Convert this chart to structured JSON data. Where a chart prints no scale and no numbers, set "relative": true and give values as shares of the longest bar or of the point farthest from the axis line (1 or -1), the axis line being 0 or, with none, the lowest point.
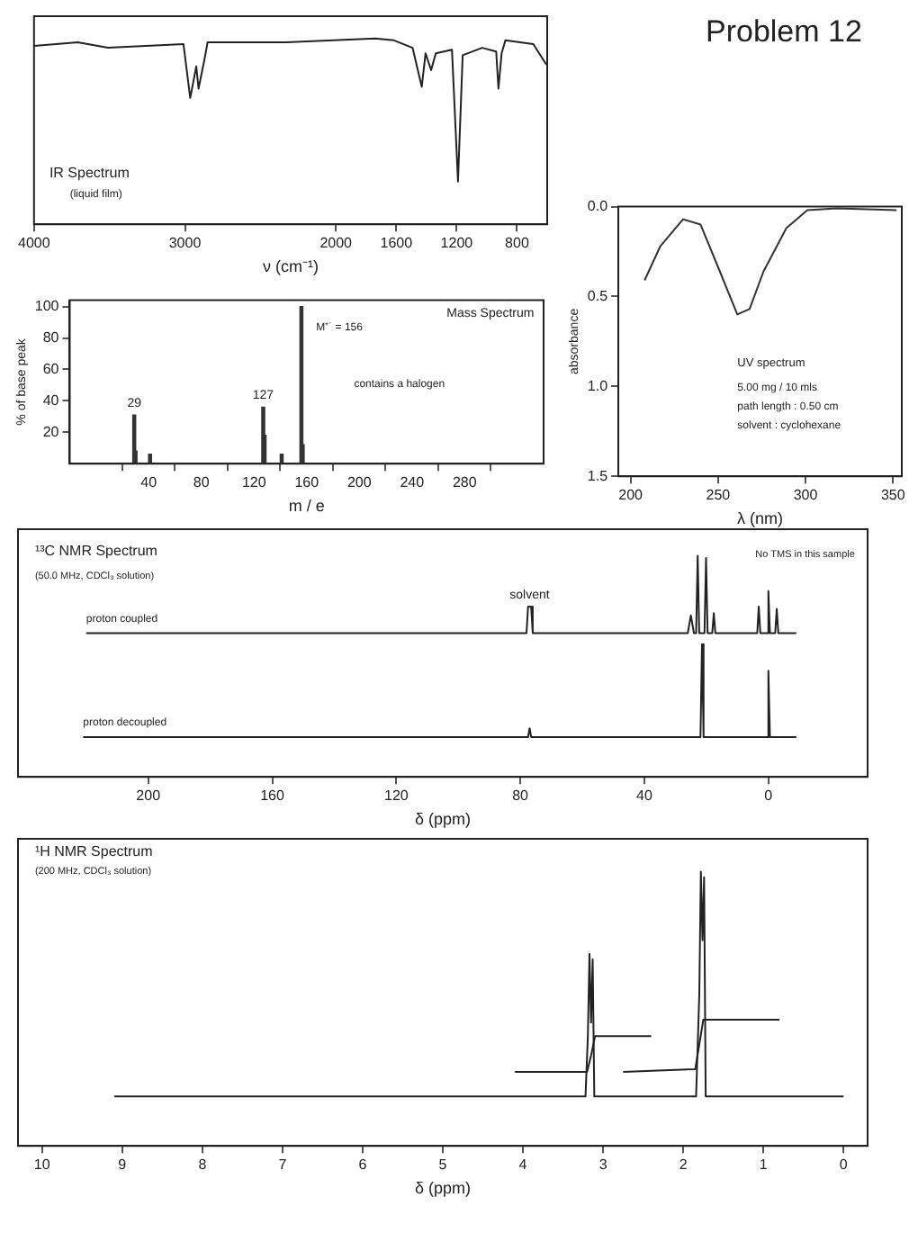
{
  "chart_data": [
    {
      "type": "line",
      "xlabel": "ν (cm⁻¹)",
      "relative": true,
      "xlim": [
        4000,
        600
      ],
      "xticks": [
        4000,
        3000,
        2000,
        1600,
        1200,
        800
      ],
      "grid": false,
      "legend": false,
      "annotations": [
        "IR Spectrum",
        "(liquid film)"
      ],
      "series": [
        {
          "color": "#222222",
          "x": [
            4000,
            3710,
            3510,
            3010,
            2965,
            2925,
            2910,
            2870,
            2850,
            2330,
            1740,
            1615,
            1492,
            1431,
            1406,
            1369,
            1338,
            1231,
            1191,
            1160,
            1031,
            938,
            923,
            902,
            877,
            692,
            606
          ],
          "values": [
            0.96,
            0.98,
            0.95,
            0.97,
            0.68,
            0.85,
            0.73,
            0.89,
            0.98,
            0.98,
            1.0,
            0.99,
            0.95,
            0.74,
            0.92,
            0.83,
            0.92,
            0.94,
            0.23,
            0.91,
            0.95,
            0.93,
            0.73,
            0.92,
            0.99,
            0.97,
            0.86
          ]
        }
      ]
    },
    {
      "type": "bar",
      "xlabel": "m / e",
      "ylabel": "% of base peak",
      "xlim": [
        -20,
        340
      ],
      "xticks": [
        40,
        80,
        120,
        160,
        200,
        240,
        280
      ],
      "ylim": [
        0,
        104
      ],
      "yticks": [
        20,
        40,
        60,
        80,
        100
      ],
      "grid": false,
      "legend": false,
      "x": [
        29,
        30,
        41,
        127,
        128,
        141,
        156,
        157
      ],
      "values": [
        31,
        8,
        6,
        36,
        18,
        6,
        100,
        12
      ],
      "color": "#333333",
      "annotations": [
        "Mass Spectrum",
        "M⁺˙ = 156",
        "contains a halogen",
        {
          "text": "29",
          "x": 29,
          "y": 31
        },
        {
          "text": "127",
          "x": 127,
          "y": 36
        }
      ]
    },
    {
      "type": "line",
      "title": "Problem 12",
      "xlabel": "λ (nm)",
      "ylabel": "absorbance",
      "xlim": [
        193,
        355
      ],
      "xticks": [
        200,
        250,
        300,
        350
      ],
      "ylim": [
        1.5,
        0
      ],
      "yticks": [
        {
          "value": 0,
          "label": "0.0"
        },
        {
          "value": 0.5,
          "label": "0.5"
        },
        {
          "value": 1,
          "label": "1.0"
        },
        {
          "value": 1.5,
          "label": "1.5"
        }
      ],
      "grid": false,
      "legend": false,
      "annotations": [
        "UV spectrum",
        "5.00 mg / 10 mls",
        "path length : 0.50 cm",
        "solvent : cyclohexane"
      ],
      "series": [
        {
          "color": "#333333",
          "x": [
            208,
            217,
            230,
            240,
            251,
            261,
            268,
            276,
            289,
            301,
            318,
            352
          ],
          "values": [
            0.41,
            0.22,
            0.07,
            0.1,
            0.36,
            0.6,
            0.57,
            0.36,
            0.12,
            0.02,
            0.01,
            0.02
          ]
        }
      ]
    },
    {
      "type": "line",
      "xlabel": "δ (ppm)",
      "relative": true,
      "xlim": [
        242,
        -32
      ],
      "xticks": [
        200,
        160,
        120,
        80,
        40,
        0
      ],
      "grid": false,
      "legend": false,
      "annotations": [
        "¹³C NMR Spectrum",
        "(50.0 MHz, CDCl₃ solution)",
        {
          "text": "solvent",
          "x": 77,
          "y": 0.77
        },
        "No TMS in this sample"
      ],
      "series": [
        {
          "name": "proton coupled",
          "color": "#222222",
          "x": [
            220,
            78,
            77.5,
            76.5,
            76,
            26,
            25,
            24,
            23.3,
            22.8,
            22.3,
            20.6,
            20.1,
            19.6,
            18.1,
            17.6,
            17.1,
            3.6,
            3.1,
            2.6,
            0.5,
            0,
            -0.5,
            -2.2,
            -2.7,
            -3.2,
            -9
          ],
          "values": [
            0.65,
            0.65,
            0.77,
            0.77,
            0.65,
            0.65,
            0.73,
            0.65,
            0.65,
            1.0,
            0.65,
            0.65,
            0.99,
            0.65,
            0.65,
            0.74,
            0.65,
            0.65,
            0.77,
            0.65,
            0.65,
            0.84,
            0.65,
            0.65,
            0.76,
            0.65,
            0.65
          ]
        },
        {
          "name": "proton decoupled",
          "color": "#222222",
          "x": [
            221,
            77.5,
            77,
            76.5,
            21.9,
            21.4,
            20.9,
            0.5,
            0,
            -0.5,
            -9
          ],
          "values": [
            0.18,
            0.18,
            0.22,
            0.18,
            0.18,
            0.6,
            0.18,
            0.18,
            0.48,
            0.18,
            0.18
          ]
        }
      ]
    },
    {
      "type": "line",
      "xlabel": "δ (ppm)",
      "relative": true,
      "xlim": [
        10.3,
        -0.3
      ],
      "xticks": [
        10,
        9,
        8,
        7,
        6,
        5,
        4,
        3,
        2,
        1,
        0
      ],
      "grid": false,
      "legend": false,
      "annotations": [
        "¹H NMR Spectrum",
        "(200 MHz, CDCl₃ solution)"
      ],
      "series": [
        {
          "color": "#222222",
          "x": [
            9.1,
            3.22,
            3.19,
            3.17,
            3.15,
            3.13,
            3.11,
            1.84,
            1.8,
            1.78,
            1.76,
            1.74,
            1.72,
            0
          ],
          "values": [
            0.18,
            0.18,
            0.4,
            0.7,
            0.45,
            0.68,
            0.18,
            0.18,
            0.55,
            1.0,
            0.75,
            0.98,
            0.18,
            0.18
          ]
        },
        {
          "color": "#222222",
          "x": [
            4.1,
            3.2,
            3.15,
            3.1,
            2.4
          ],
          "values": [
            0.27,
            0.27,
            0.33,
            0.4,
            0.4
          ]
        },
        {
          "color": "#222222",
          "x": [
            2.75,
            1.85,
            1.8,
            1.75,
            0.8
          ],
          "values": [
            0.27,
            0.28,
            0.37,
            0.46,
            0.46
          ]
        }
      ]
    }
  ]
}
